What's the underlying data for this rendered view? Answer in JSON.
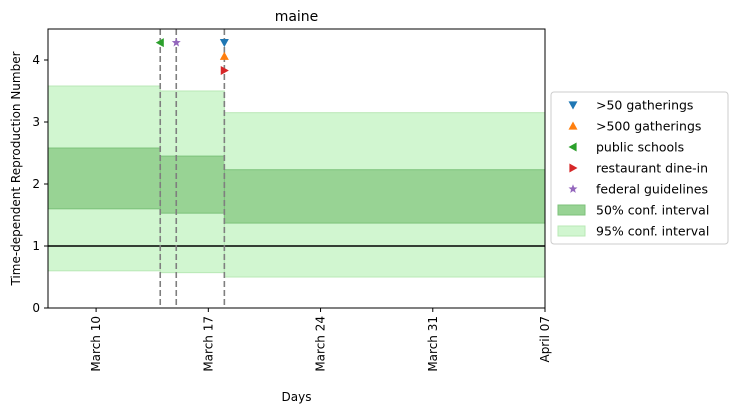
{
  "chart_data": {
    "type": "area",
    "title": "maine",
    "xlabel": "Days",
    "ylabel": "Time-dependent Reproduction Number",
    "x_axis": {
      "range": [
        "2020-03-07",
        "2020-04-07"
      ],
      "ticks": [
        {
          "date": "2020-03-10",
          "label": "March 10"
        },
        {
          "date": "2020-03-17",
          "label": "March 17"
        },
        {
          "date": "2020-03-24",
          "label": "March 24"
        },
        {
          "date": "2020-03-31",
          "label": "March 31"
        },
        {
          "date": "2020-04-07",
          "label": "April 07"
        }
      ]
    },
    "y_axis": {
      "range": [
        0,
        4.5
      ],
      "ticks": [
        0,
        1,
        2,
        3,
        4
      ]
    },
    "reference_line": {
      "y": 1,
      "color": "#000000"
    },
    "intervals": [
      {
        "start": "2020-03-07",
        "end": "2020-03-14",
        "ci50": [
          1.6,
          2.58
        ],
        "ci95": [
          0.6,
          3.58
        ]
      },
      {
        "start": "2020-03-14",
        "end": "2020-03-18",
        "ci50": [
          1.53,
          2.45
        ],
        "ci95": [
          0.57,
          3.5
        ]
      },
      {
        "start": "2020-03-18",
        "end": "2020-04-07",
        "ci50": [
          1.37,
          2.23
        ],
        "ci95": [
          0.5,
          3.15
        ]
      }
    ],
    "event_lines": [
      "2020-03-14",
      "2020-03-15",
      "2020-03-18"
    ],
    "events": [
      {
        "name": ">50 gatherings",
        "date": "2020-03-18",
        "y": 4.28,
        "marker": "triangle-down",
        "color": "#1f77b4"
      },
      {
        "name": ">500 gatherings",
        "date": "2020-03-18",
        "y": 4.06,
        "marker": "triangle-up",
        "color": "#ff7f0e"
      },
      {
        "name": "public schools",
        "date": "2020-03-14",
        "y": 4.28,
        "marker": "triangle-left",
        "color": "#2ca02c"
      },
      {
        "name": "restaurant dine-in",
        "date": "2020-03-18",
        "y": 3.83,
        "marker": "triangle-right",
        "color": "#d62728"
      },
      {
        "name": "federal guidelines",
        "date": "2020-03-15",
        "y": 4.28,
        "marker": "star",
        "color": "#9467bd"
      }
    ],
    "bands": [
      {
        "name": "50% conf. interval",
        "color": "#98d394"
      },
      {
        "name": "95% conf. interval",
        "color": "#d1f6d0"
      }
    ],
    "legend_position": "center-right outside"
  }
}
